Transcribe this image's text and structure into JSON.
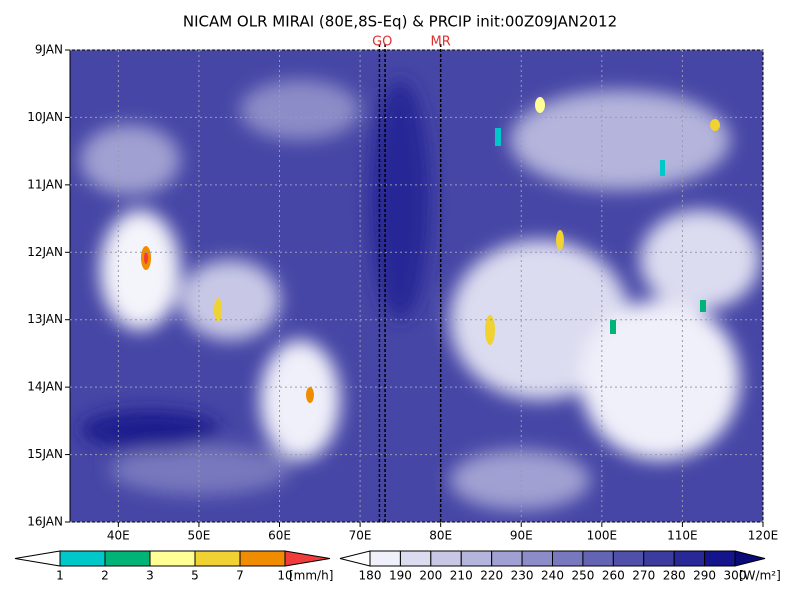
{
  "chart_data": {
    "type": "hovmoller",
    "title": "NICAM OLR MIRAI (80E,8S-Eq) & PRCIP init:00Z09JAN2012",
    "xlim": [
      34,
      120
    ],
    "xticks": [
      {
        "value": 40,
        "label": "40E"
      },
      {
        "value": 50,
        "label": "50E"
      },
      {
        "value": 60,
        "label": "60E"
      },
      {
        "value": 70,
        "label": "70E"
      },
      {
        "value": 80,
        "label": "80E"
      },
      {
        "value": 90,
        "label": "90E"
      },
      {
        "value": 100,
        "label": "100E"
      },
      {
        "value": 110,
        "label": "110E"
      },
      {
        "value": 120,
        "label": "120E"
      }
    ],
    "ylim": [
      9,
      16
    ],
    "yticks": [
      {
        "value": 9,
        "label": "9JAN"
      },
      {
        "value": 10,
        "label": "10JAN"
      },
      {
        "value": 11,
        "label": "11JAN"
      },
      {
        "value": 12,
        "label": "12JAN"
      },
      {
        "value": 13,
        "label": "13JAN"
      },
      {
        "value": 14,
        "label": "14JAN"
      },
      {
        "value": 15,
        "label": "15JAN"
      },
      {
        "value": 16,
        "label": "16JAN"
      }
    ],
    "grid": true,
    "markers": [
      {
        "label": "GO",
        "x": [
          72.4,
          73.1
        ]
      },
      {
        "label": "MR",
        "x": [
          80
        ]
      }
    ],
    "colorbars": [
      {
        "levels": [
          1,
          2,
          3,
          5,
          7,
          10
        ],
        "unit": "[mm/h]",
        "colors": [
          "#ffffff",
          "#00c8c8",
          "#00b478",
          "#ffff96",
          "#f0d232",
          "#f08c00",
          "#f03c3c"
        ]
      },
      {
        "levels": [
          180,
          190,
          200,
          210,
          220,
          230,
          240,
          250,
          260,
          270,
          280,
          290,
          300
        ],
        "unit": "[W/m²]",
        "colors": [
          "#ffffff",
          "#f0f0fa",
          "#dcdcf0",
          "#c8c8e6",
          "#b4b4dc",
          "#a0a0d2",
          "#8c8cc8",
          "#7878be",
          "#6464b4",
          "#5050aa",
          "#3c3ca0",
          "#282896",
          "#14148c",
          "#0a0a78"
        ]
      }
    ]
  }
}
